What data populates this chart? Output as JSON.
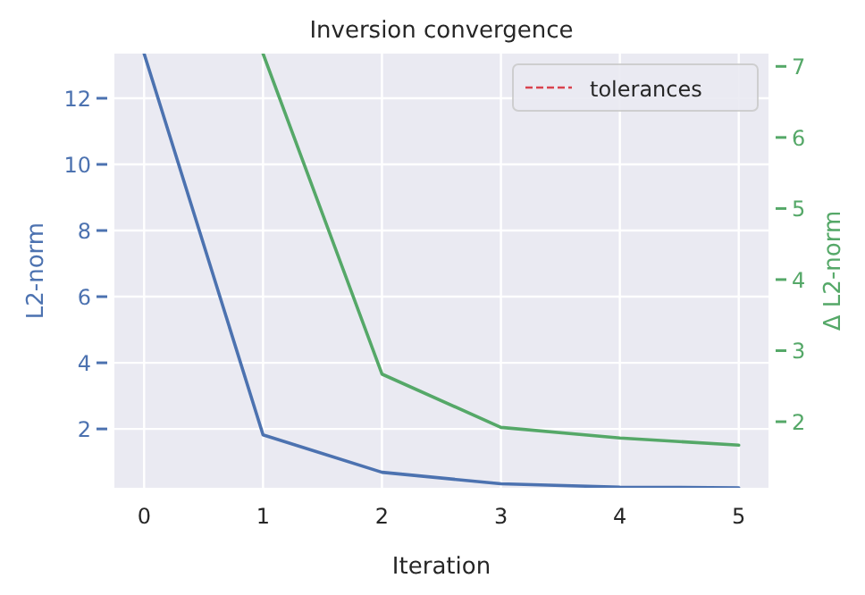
{
  "chart_data": {
    "type": "line",
    "title": "Inversion convergence",
    "xlabel": "Iteration",
    "ylabel": "L2-norm",
    "y2label": "Δ L2-norm",
    "x": [
      0,
      1,
      2,
      3,
      4,
      5
    ],
    "series": [
      {
        "name": null,
        "color": "#4c72b0",
        "values": [
          13.35,
          1.82,
          0.69,
          0.34,
          0.24,
          0.22
        ]
      },
      {
        "name": null,
        "color": "#55a868",
        "axis": "y2",
        "values": [
          null,
          7.18,
          2.67,
          1.92,
          1.77,
          1.67
        ]
      },
      {
        "name": "tolerances",
        "color": "#d9434f",
        "line_style": "dashed",
        "values": [
          null,
          null,
          null,
          null,
          null,
          null
        ]
      }
    ],
    "xlim": [
      -0.25,
      5.25
    ],
    "xticks": [
      0,
      1,
      2,
      3,
      4,
      5
    ],
    "ylim": [
      0.22,
      13.35
    ],
    "yticks": [
      2,
      4,
      6,
      8,
      10,
      12
    ],
    "y2lim": [
      1.07,
      7.18
    ],
    "y2ticks": [
      2,
      3,
      4,
      5,
      6,
      7
    ],
    "grid": true,
    "legend": "top right"
  }
}
